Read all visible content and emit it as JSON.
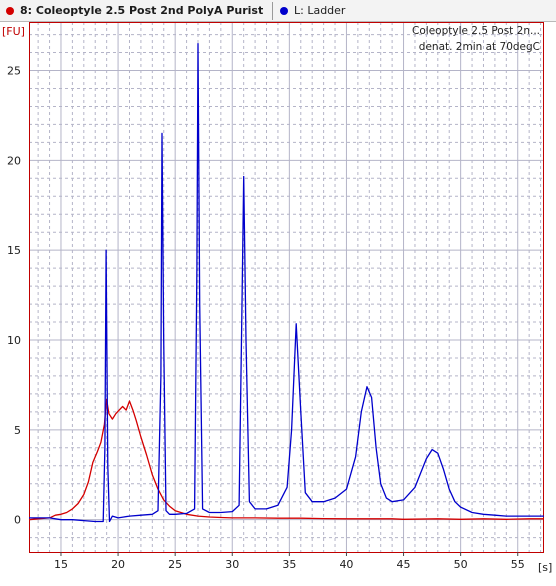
{
  "tabs": [
    {
      "label": "8: Coleoptyle 2.5 Post 2nd PolyA Purist",
      "color": "#d40000",
      "active": true
    },
    {
      "label": "L: Ladder",
      "color": "#0000cc",
      "active": false
    }
  ],
  "chart_data": {
    "type": "line",
    "annotation_lines": [
      "Coleoptyle 2.5 Post 2n...",
      "denat. 2min at 70degC"
    ],
    "ylabel": "[FU]",
    "xlabel": "[s]",
    "xlim": [
      12.2,
      57.3
    ],
    "ylim": [
      -1.8,
      27.7
    ],
    "xticks": [
      15,
      20,
      25,
      30,
      35,
      40,
      45,
      50,
      55
    ],
    "yticks": [
      0,
      5,
      10,
      15,
      20,
      25
    ],
    "grid": true,
    "series": [
      {
        "name": "8: Coleoptyle 2.5 Post 2nd PolyA Purist",
        "color": "#d40000",
        "points": [
          [
            12.2,
            0.0
          ],
          [
            13,
            0.05
          ],
          [
            14,
            0.1
          ],
          [
            14.5,
            0.25
          ],
          [
            15,
            0.3
          ],
          [
            15.5,
            0.4
          ],
          [
            16,
            0.6
          ],
          [
            16.5,
            0.9
          ],
          [
            17,
            1.4
          ],
          [
            17.4,
            2.1
          ],
          [
            17.8,
            3.2
          ],
          [
            18.2,
            3.8
          ],
          [
            18.5,
            4.3
          ],
          [
            18.8,
            5.3
          ],
          [
            19.0,
            6.7
          ],
          [
            19.2,
            5.9
          ],
          [
            19.5,
            5.6
          ],
          [
            19.8,
            5.9
          ],
          [
            20.1,
            6.1
          ],
          [
            20.4,
            6.3
          ],
          [
            20.7,
            6.1
          ],
          [
            21.0,
            6.6
          ],
          [
            21.3,
            6.1
          ],
          [
            21.6,
            5.5
          ],
          [
            22.0,
            4.6
          ],
          [
            22.5,
            3.6
          ],
          [
            23.0,
            2.5
          ],
          [
            23.5,
            1.7
          ],
          [
            24.0,
            1.1
          ],
          [
            24.5,
            0.75
          ],
          [
            25,
            0.5
          ],
          [
            25.5,
            0.4
          ],
          [
            26,
            0.3
          ],
          [
            27,
            0.2
          ],
          [
            28,
            0.15
          ],
          [
            29,
            0.12
          ],
          [
            30,
            0.1
          ],
          [
            32,
            0.1
          ],
          [
            34,
            0.08
          ],
          [
            36,
            0.08
          ],
          [
            38,
            0.06
          ],
          [
            40,
            0.05
          ],
          [
            42,
            0.05
          ],
          [
            44,
            0.05
          ],
          [
            45,
            0.02
          ],
          [
            48,
            0.05
          ],
          [
            50,
            0.02
          ],
          [
            52,
            0.05
          ],
          [
            54,
            0.02
          ],
          [
            56,
            0.05
          ],
          [
            57.3,
            0.05
          ]
        ]
      },
      {
        "name": "L: Ladder",
        "color": "#0000cc",
        "points": [
          [
            12.2,
            0.1
          ],
          [
            13,
            0.1
          ],
          [
            14,
            0.1
          ],
          [
            15,
            0.0
          ],
          [
            16,
            0.0
          ],
          [
            17,
            -0.05
          ],
          [
            18,
            -0.1
          ],
          [
            18.7,
            -0.1
          ],
          [
            18.85,
            4
          ],
          [
            18.95,
            15.0
          ],
          [
            19.1,
            3
          ],
          [
            19.25,
            -0.1
          ],
          [
            19.5,
            0.2
          ],
          [
            20,
            0.1
          ],
          [
            20.5,
            0.15
          ],
          [
            21,
            0.2
          ],
          [
            22,
            0.25
          ],
          [
            23,
            0.3
          ],
          [
            23.5,
            0.5
          ],
          [
            23.75,
            8
          ],
          [
            23.85,
            21.5
          ],
          [
            24.0,
            10
          ],
          [
            24.2,
            0.5
          ],
          [
            24.5,
            0.3
          ],
          [
            25,
            0.3
          ],
          [
            26,
            0.35
          ],
          [
            26.7,
            0.6
          ],
          [
            26.9,
            14
          ],
          [
            27.0,
            26.5
          ],
          [
            27.15,
            12
          ],
          [
            27.4,
            0.6
          ],
          [
            28,
            0.4
          ],
          [
            29,
            0.4
          ],
          [
            30,
            0.45
          ],
          [
            30.6,
            0.8
          ],
          [
            30.85,
            12
          ],
          [
            31.0,
            19.1
          ],
          [
            31.2,
            10
          ],
          [
            31.5,
            1.0
          ],
          [
            32,
            0.6
          ],
          [
            33,
            0.6
          ],
          [
            34,
            0.8
          ],
          [
            34.8,
            1.8
          ],
          [
            35.2,
            5
          ],
          [
            35.6,
            10.9
          ],
          [
            36.0,
            6
          ],
          [
            36.4,
            1.5
          ],
          [
            37,
            1.0
          ],
          [
            38,
            1.0
          ],
          [
            39,
            1.2
          ],
          [
            40,
            1.7
          ],
          [
            40.8,
            3.5
          ],
          [
            41.3,
            6
          ],
          [
            41.8,
            7.4
          ],
          [
            42.2,
            6.8
          ],
          [
            42.6,
            4
          ],
          [
            43,
            2
          ],
          [
            43.5,
            1.2
          ],
          [
            44,
            1.0
          ],
          [
            45,
            1.1
          ],
          [
            46,
            1.8
          ],
          [
            46.5,
            2.6
          ],
          [
            47,
            3.4
          ],
          [
            47.5,
            3.9
          ],
          [
            48,
            3.7
          ],
          [
            48.5,
            2.8
          ],
          [
            49,
            1.7
          ],
          [
            49.5,
            1.0
          ],
          [
            50,
            0.7
          ],
          [
            51,
            0.4
          ],
          [
            52,
            0.3
          ],
          [
            53,
            0.25
          ],
          [
            54,
            0.2
          ],
          [
            55,
            0.2
          ],
          [
            56,
            0.2
          ],
          [
            57.3,
            0.2
          ]
        ]
      }
    ]
  }
}
